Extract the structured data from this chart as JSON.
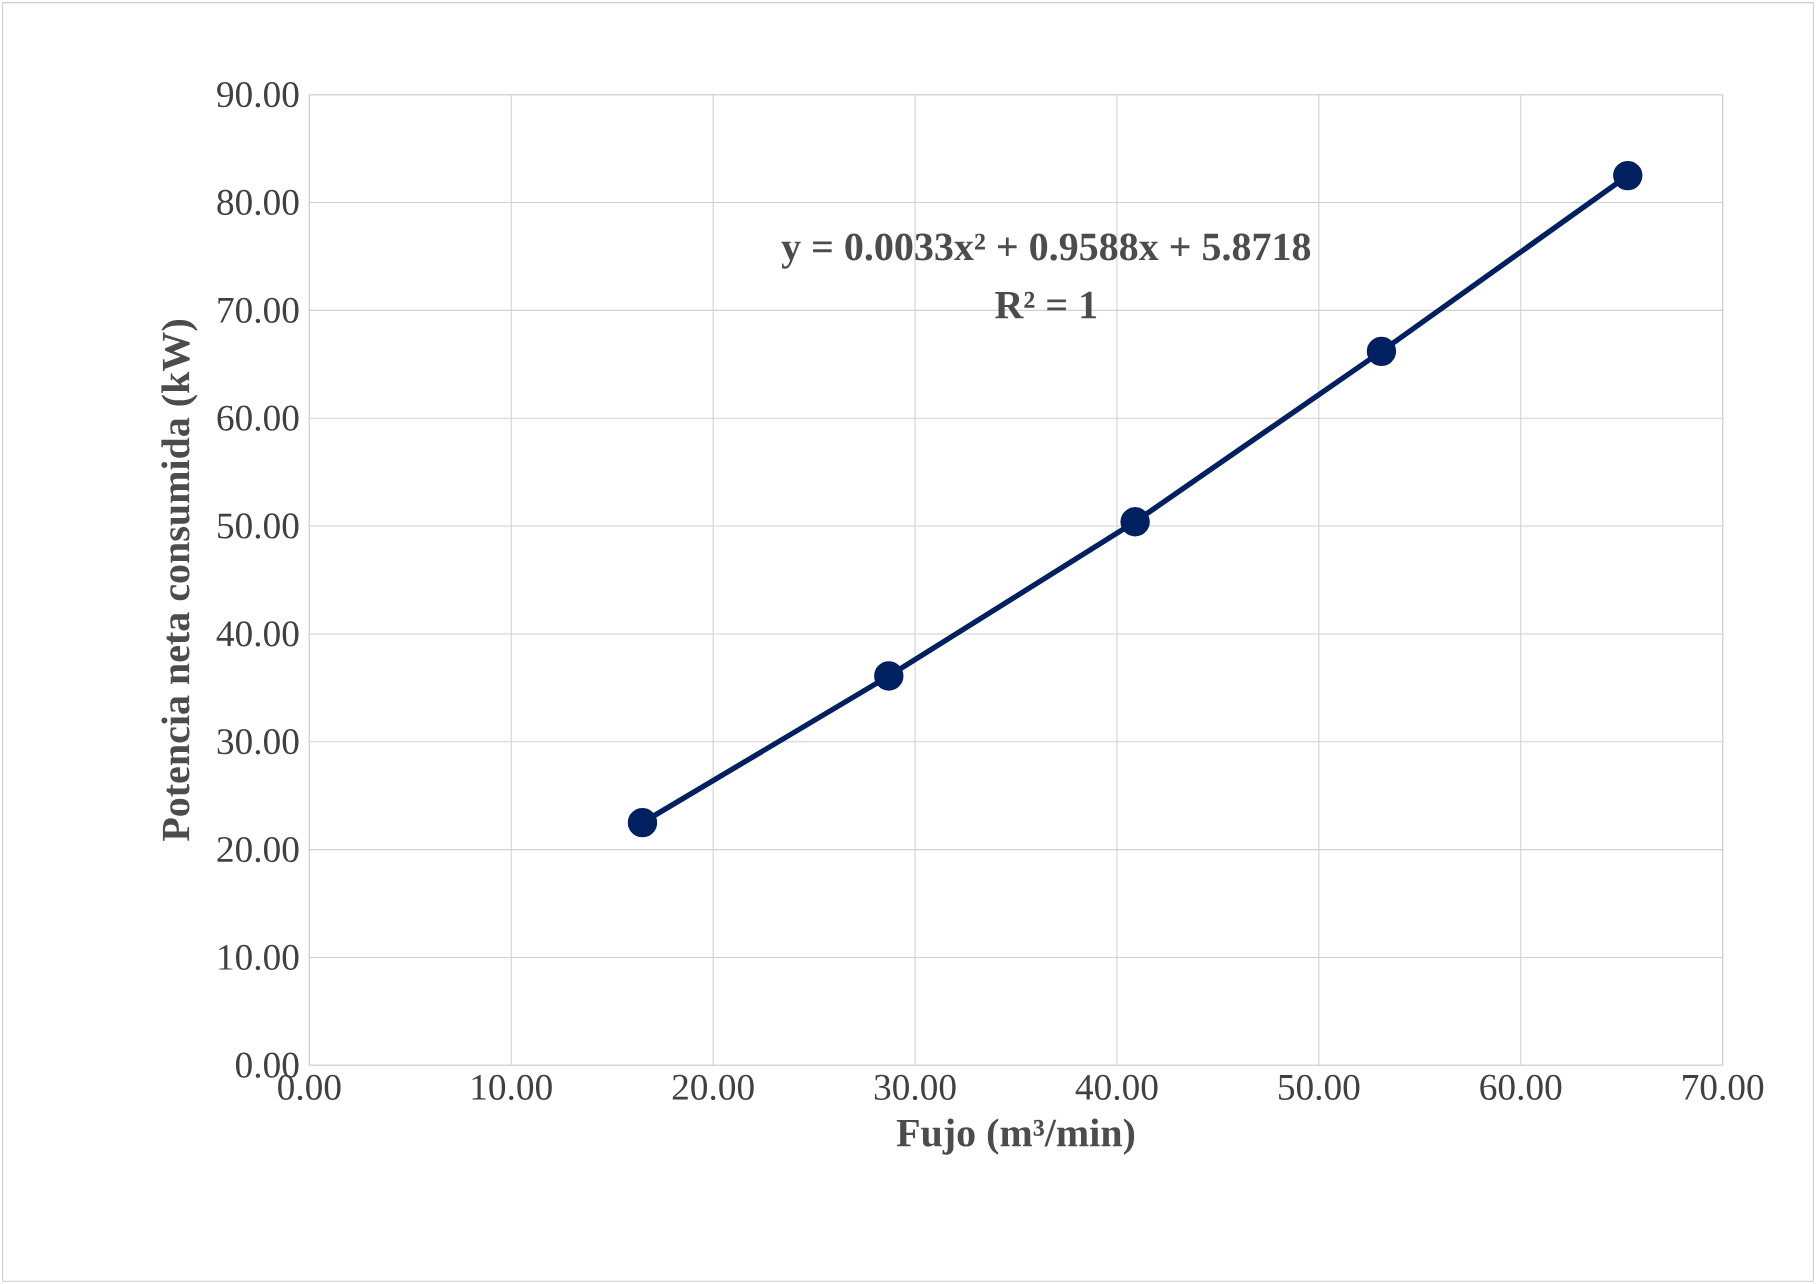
{
  "chart_data": {
    "type": "line",
    "xlabel": "Fujo (m³/min)",
    "ylabel": "Potencia neta consumida  (kW)",
    "annotations": [
      "y = 0.0033x² + 0.9588x + 5.8718",
      "R² = 1"
    ],
    "x": [
      16.5,
      28.7,
      40.9,
      53.1,
      65.3
    ],
    "series": [
      {
        "color": "#002060",
        "values": [
          22.5,
          36.1,
          50.4,
          66.2,
          82.5
        ]
      }
    ],
    "xlim": [
      0,
      70
    ],
    "ylim": [
      0,
      90
    ],
    "xticks": [
      {
        "value": 0,
        "label": "0.00"
      },
      {
        "value": 10,
        "label": "10.00"
      },
      {
        "value": 20,
        "label": "20.00"
      },
      {
        "value": 30,
        "label": "30.00"
      },
      {
        "value": 40,
        "label": "40.00"
      },
      {
        "value": 50,
        "label": "50.00"
      },
      {
        "value": 60,
        "label": "60.00"
      },
      {
        "value": 70,
        "label": "70.00"
      }
    ],
    "yticks": [
      {
        "value": 0,
        "label": "0.00"
      },
      {
        "value": 10,
        "label": "10.00"
      },
      {
        "value": 20,
        "label": "20.00"
      },
      {
        "value": 30,
        "label": "30.00"
      },
      {
        "value": 40,
        "label": "40.00"
      },
      {
        "value": 50,
        "label": "50.00"
      },
      {
        "value": 60,
        "label": "60.00"
      },
      {
        "value": 70,
        "label": "70.00"
      },
      {
        "value": 80,
        "label": "80.00"
      },
      {
        "value": 90,
        "label": "90.00"
      }
    ],
    "grid": true,
    "marker": "circle",
    "line_style": "solid"
  }
}
